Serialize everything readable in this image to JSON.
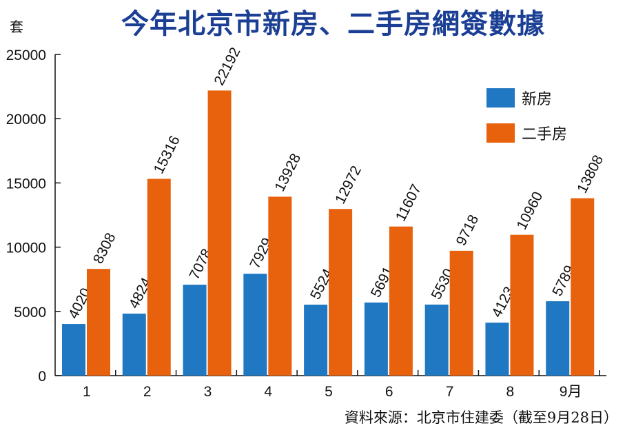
{
  "header": {
    "title": "今年北京市新房、二手房網簽數據"
  },
  "footer": {
    "source": "資料來源：北京市住建委（截至9月28日）"
  },
  "colors": {
    "series_new": "#1f78c1",
    "series_second": "#e8610d",
    "title": "#1b3f94"
  },
  "chart_data": {
    "type": "bar",
    "title": "今年北京市新房、二手房網簽數據",
    "ylabel": "套",
    "xlabel": "",
    "categories": [
      "1",
      "2",
      "3",
      "4",
      "5",
      "6",
      "7",
      "8",
      "9月"
    ],
    "ylim": [
      0,
      25000
    ],
    "yticks": [
      "0",
      "5000",
      "10000",
      "15000",
      "20000",
      "25000"
    ],
    "legend_position": "top-right",
    "series": [
      {
        "name": "新房",
        "color": "#1f78c1",
        "values": [
          4020,
          4824,
          7078,
          7929,
          5524,
          5691,
          5530,
          4123,
          5789
        ]
      },
      {
        "name": "二手房",
        "color": "#e8610d",
        "values": [
          8308,
          15316,
          22192,
          13928,
          12972,
          11607,
          9718,
          10960,
          13808
        ]
      }
    ]
  }
}
